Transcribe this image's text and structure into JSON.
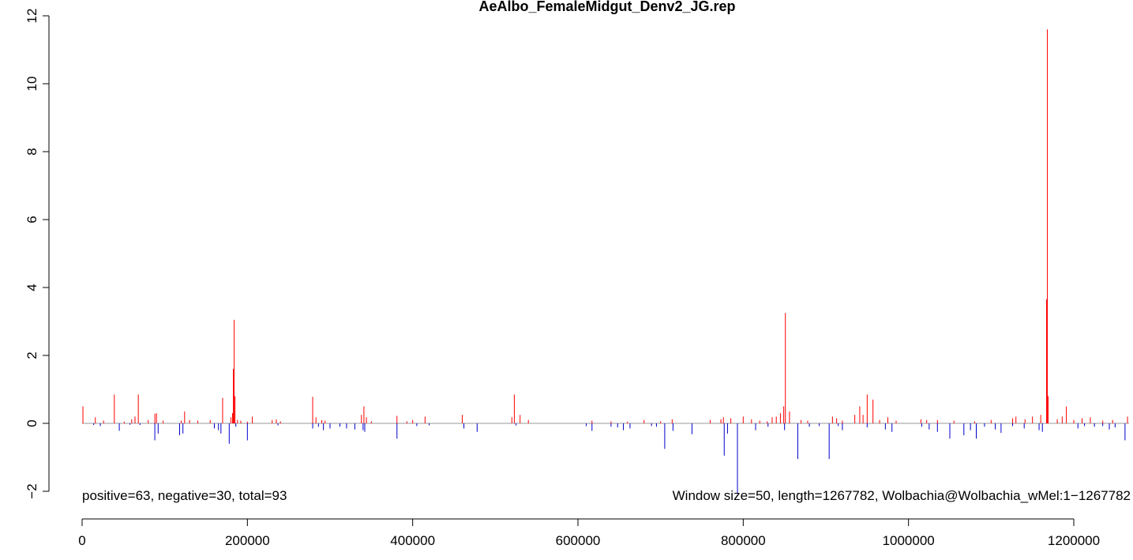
{
  "chart_data": {
    "type": "bar",
    "title": "AeAlbo_FemaleMidgut_Denv2_JG.rep",
    "xlabel": "",
    "ylabel": "",
    "xlim": [
      0,
      1267782
    ],
    "ylim": [
      -2,
      12
    ],
    "x_ticks": [
      0,
      200000,
      400000,
      600000,
      800000,
      1000000,
      1200000
    ],
    "x_tick_labels": [
      "0",
      "200000",
      "400000",
      "600000",
      "800000",
      "1000000",
      "1200000"
    ],
    "y_ticks": [
      -2,
      0,
      2,
      4,
      6,
      8,
      10,
      12
    ],
    "y_tick_labels": [
      "−2",
      "0",
      "2",
      "4",
      "6",
      "8",
      "10",
      "12"
    ],
    "annotation_left": "positive=63, negative=30, total=93",
    "annotation_right": "Window size=50, length=1267782, Wolbachia@Wolbachia_wMel:1−1267782",
    "colors": {
      "positive": "#ff0000",
      "negative": "#0000cc",
      "baseline": "#999999",
      "axis": "#000000"
    },
    "series": [
      {
        "name": "positive",
        "points": [
          [
            1000,
            0.5
          ],
          [
            16000,
            0.18
          ],
          [
            26000,
            0.08
          ],
          [
            39000,
            0.85
          ],
          [
            51000,
            0.05
          ],
          [
            60000,
            0.12
          ],
          [
            64000,
            0.2
          ],
          [
            68000,
            0.85
          ],
          [
            80000,
            0.1
          ],
          [
            88000,
            0.28
          ],
          [
            90000,
            0.3
          ],
          [
            98000,
            0.08
          ],
          [
            120000,
            0.08
          ],
          [
            124000,
            0.35
          ],
          [
            130000,
            0.1
          ],
          [
            140000,
            0.08
          ],
          [
            155000,
            0.1
          ],
          [
            170000,
            0.75
          ],
          [
            180000,
            0.18
          ],
          [
            182000,
            0.3
          ],
          [
            183000,
            1.6
          ],
          [
            184000,
            3.05
          ],
          [
            185000,
            0.8
          ],
          [
            188000,
            0.1
          ],
          [
            192000,
            0.08
          ],
          [
            200000,
            0.05
          ],
          [
            206000,
            0.2
          ],
          [
            230000,
            0.1
          ],
          [
            235000,
            0.12
          ],
          [
            240000,
            0.06
          ],
          [
            279000,
            0.78
          ],
          [
            283000,
            0.18
          ],
          [
            290000,
            0.1
          ],
          [
            294000,
            0.08
          ],
          [
            338000,
            0.25
          ],
          [
            341000,
            0.5
          ],
          [
            344000,
            0.18
          ],
          [
            350000,
            0.06
          ],
          [
            381000,
            0.22
          ],
          [
            393000,
            0.06
          ],
          [
            400000,
            0.1
          ],
          [
            415000,
            0.2
          ],
          [
            460000,
            0.25
          ],
          [
            520000,
            0.18
          ],
          [
            523000,
            0.85
          ],
          [
            530000,
            0.25
          ],
          [
            540000,
            0.1
          ],
          [
            617000,
            0.08
          ],
          [
            640000,
            0.06
          ],
          [
            660000,
            0.05
          ],
          [
            680000,
            0.1
          ],
          [
            700000,
            0.06
          ],
          [
            714000,
            0.12
          ],
          [
            760000,
            0.1
          ],
          [
            773000,
            0.12
          ],
          [
            776000,
            0.18
          ],
          [
            785000,
            0.15
          ],
          [
            800000,
            0.2
          ],
          [
            810000,
            0.12
          ],
          [
            820000,
            0.08
          ],
          [
            829000,
            0.06
          ],
          [
            835000,
            0.18
          ],
          [
            840000,
            0.2
          ],
          [
            845000,
            0.3
          ],
          [
            849000,
            0.5
          ],
          [
            851000,
            3.25
          ],
          [
            856000,
            0.35
          ],
          [
            870000,
            0.1
          ],
          [
            878000,
            0.08
          ],
          [
            908000,
            0.2
          ],
          [
            913000,
            0.15
          ],
          [
            920000,
            0.08
          ],
          [
            935000,
            0.25
          ],
          [
            941000,
            0.5
          ],
          [
            945000,
            0.25
          ],
          [
            950000,
            0.85
          ],
          [
            957000,
            0.7
          ],
          [
            965000,
            0.1
          ],
          [
            975000,
            0.18
          ],
          [
            985000,
            0.08
          ],
          [
            1015000,
            0.12
          ],
          [
            1022000,
            0.1
          ],
          [
            1035000,
            0.1
          ],
          [
            1055000,
            0.08
          ],
          [
            1080000,
            0.06
          ],
          [
            1100000,
            0.1
          ],
          [
            1126000,
            0.15
          ],
          [
            1130000,
            0.2
          ],
          [
            1141000,
            0.12
          ],
          [
            1150000,
            0.2
          ],
          [
            1160000,
            0.25
          ],
          [
            1167000,
            3.65
          ],
          [
            1168000,
            11.6
          ],
          [
            1169000,
            0.8
          ],
          [
            1180000,
            0.12
          ],
          [
            1186000,
            0.2
          ],
          [
            1191000,
            0.5
          ],
          [
            1200000,
            0.1
          ],
          [
            1210000,
            0.15
          ],
          [
            1220000,
            0.18
          ],
          [
            1235000,
            0.08
          ],
          [
            1247000,
            0.1
          ],
          [
            1265000,
            0.2
          ]
        ]
      },
      {
        "name": "negative",
        "points": [
          [
            14000,
            -0.05
          ],
          [
            22000,
            -0.08
          ],
          [
            45000,
            -0.22
          ],
          [
            58000,
            -0.04
          ],
          [
            70000,
            -0.05
          ],
          [
            88000,
            -0.5
          ],
          [
            92000,
            -0.3
          ],
          [
            118000,
            -0.35
          ],
          [
            122000,
            -0.3
          ],
          [
            160000,
            -0.15
          ],
          [
            165000,
            -0.2
          ],
          [
            168000,
            -0.3
          ],
          [
            178000,
            -0.6
          ],
          [
            186000,
            -0.1
          ],
          [
            200000,
            -0.5
          ],
          [
            237000,
            -0.06
          ],
          [
            279000,
            -0.15
          ],
          [
            286000,
            -0.1
          ],
          [
            292000,
            -0.2
          ],
          [
            300000,
            -0.15
          ],
          [
            312000,
            -0.1
          ],
          [
            320000,
            -0.15
          ],
          [
            330000,
            -0.18
          ],
          [
            340000,
            -0.2
          ],
          [
            342000,
            -0.25
          ],
          [
            381000,
            -0.45
          ],
          [
            405000,
            -0.08
          ],
          [
            420000,
            -0.06
          ],
          [
            462000,
            -0.15
          ],
          [
            478000,
            -0.25
          ],
          [
            525000,
            -0.06
          ],
          [
            610000,
            -0.08
          ],
          [
            617000,
            -0.22
          ],
          [
            640000,
            -0.1
          ],
          [
            648000,
            -0.12
          ],
          [
            655000,
            -0.2
          ],
          [
            663000,
            -0.15
          ],
          [
            689000,
            -0.08
          ],
          [
            695000,
            -0.1
          ],
          [
            705000,
            -0.75
          ],
          [
            715000,
            -0.22
          ],
          [
            738000,
            -0.32
          ],
          [
            777000,
            -0.95
          ],
          [
            781000,
            -0.3
          ],
          [
            793000,
            -2.05
          ],
          [
            815000,
            -0.2
          ],
          [
            830000,
            -0.1
          ],
          [
            850000,
            -0.2
          ],
          [
            866000,
            -1.05
          ],
          [
            880000,
            -0.1
          ],
          [
            892000,
            -0.08
          ],
          [
            904000,
            -1.05
          ],
          [
            915000,
            -0.08
          ],
          [
            920000,
            -0.2
          ],
          [
            950000,
            -0.12
          ],
          [
            972000,
            -0.18
          ],
          [
            980000,
            -0.25
          ],
          [
            1016000,
            -0.1
          ],
          [
            1025000,
            -0.18
          ],
          [
            1035000,
            -0.25
          ],
          [
            1050000,
            -0.45
          ],
          [
            1067000,
            -0.35
          ],
          [
            1075000,
            -0.2
          ],
          [
            1082000,
            -0.45
          ],
          [
            1092000,
            -0.1
          ],
          [
            1105000,
            -0.18
          ],
          [
            1112000,
            -0.28
          ],
          [
            1126000,
            -0.08
          ],
          [
            1140000,
            -0.15
          ],
          [
            1158000,
            -0.2
          ],
          [
            1162000,
            -0.25
          ],
          [
            1205000,
            -0.15
          ],
          [
            1213000,
            -0.08
          ],
          [
            1225000,
            -0.1
          ],
          [
            1235000,
            -0.08
          ],
          [
            1243000,
            -0.18
          ],
          [
            1250000,
            -0.12
          ],
          [
            1262000,
            -0.5
          ]
        ]
      }
    ]
  }
}
